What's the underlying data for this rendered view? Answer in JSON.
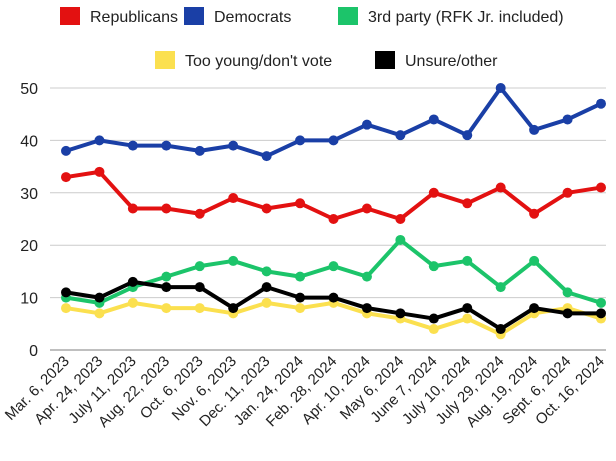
{
  "chart_data": {
    "type": "line",
    "title": "",
    "xlabel": "",
    "ylabel": "",
    "ylim": [
      0,
      50
    ],
    "yticks": [
      0,
      10,
      20,
      30,
      40,
      50
    ],
    "grid": true,
    "legend_position": "top",
    "categories": [
      "Mar. 6, 2023",
      "Apr. 24, 2023",
      "July 11, 2023",
      "Aug. 22, 2023",
      "Oct. 6, 2023",
      "Nov. 6, 2023",
      "Dec. 11, 2023",
      "Jan. 24, 2024",
      "Feb. 28, 2024",
      "Apr. 10, 2024",
      "May 6, 2024",
      "June 7, 2024",
      "July 10, 2024",
      "July 29, 2024",
      "Aug. 19, 2024",
      "Sept. 6, 2024",
      "Oct. 16, 2024"
    ],
    "series": [
      {
        "name": "Too young/don't vote",
        "color": "#fbe04f",
        "values": [
          8,
          7,
          9,
          8,
          8,
          7,
          9,
          8,
          9,
          7,
          6,
          4,
          6,
          3,
          7,
          8,
          6
        ]
      },
      {
        "name": "3rd party (RFK Jr. included)",
        "color": "#1cc46a",
        "values": [
          10,
          9,
          12,
          14,
          16,
          17,
          15,
          14,
          16,
          14,
          21,
          16,
          17,
          12,
          17,
          11,
          9
        ]
      },
      {
        "name": "Unsure/other",
        "color": "#000000",
        "values": [
          11,
          10,
          13,
          12,
          12,
          8,
          12,
          10,
          10,
          8,
          7,
          6,
          8,
          4,
          8,
          7,
          7
        ]
      },
      {
        "name": "Republicans",
        "color": "#e31111",
        "values": [
          33,
          34,
          27,
          27,
          26,
          29,
          27,
          28,
          25,
          27,
          25,
          30,
          28,
          31,
          26,
          30,
          31
        ]
      },
      {
        "name": "Democrats",
        "color": "#1a3fa6",
        "values": [
          38,
          40,
          39,
          39,
          38,
          39,
          37,
          40,
          40,
          43,
          41,
          44,
          41,
          50,
          42,
          44,
          47
        ]
      }
    ],
    "legend_order": [
      "Republicans",
      "Democrats",
      "3rd party (RFK Jr. included)",
      "Too young/don't vote",
      "Unsure/other"
    ]
  }
}
